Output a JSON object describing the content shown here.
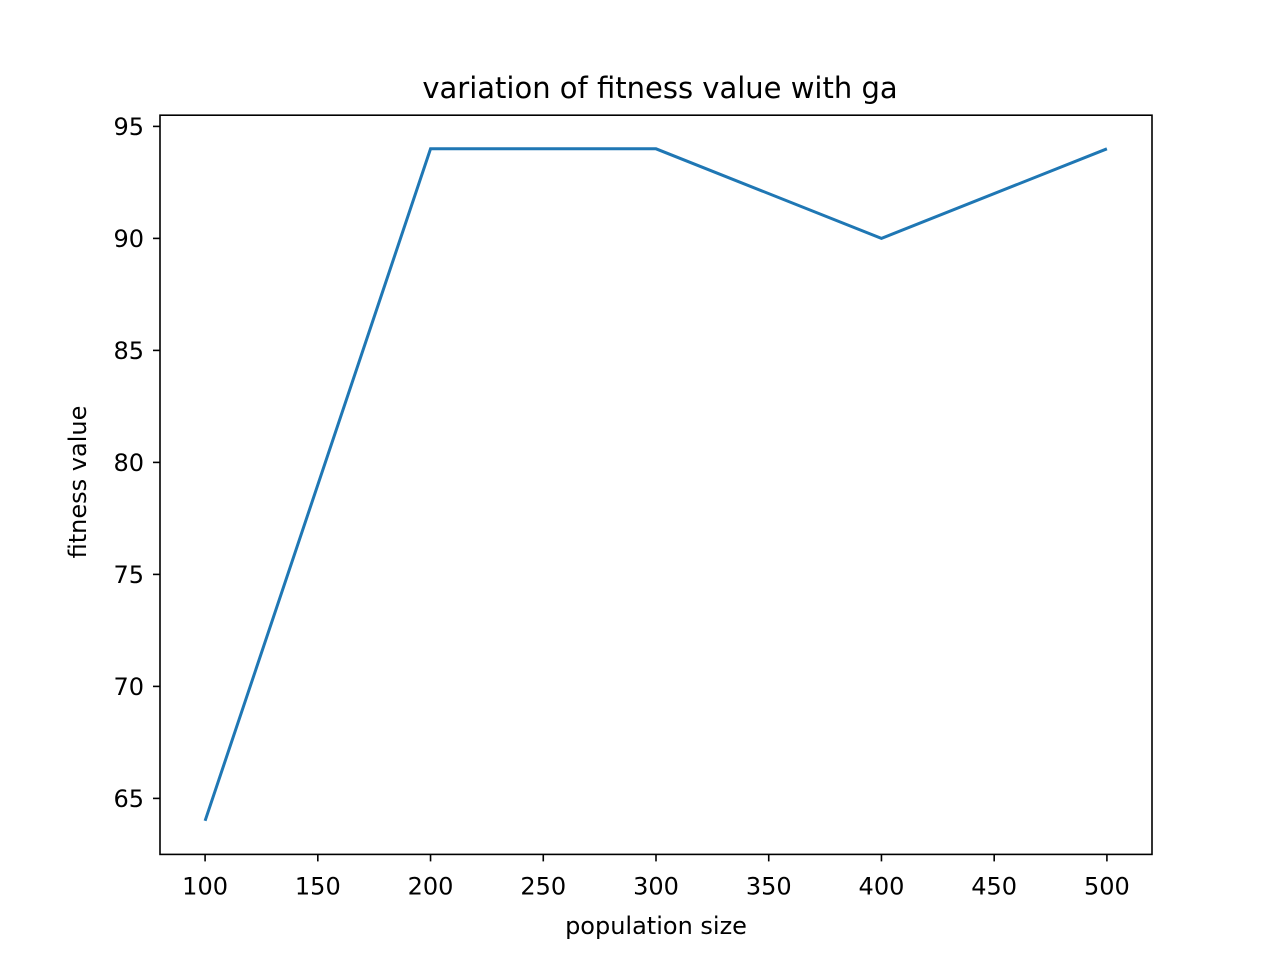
{
  "chart_data": {
    "type": "line",
    "title": "variation of fitness value with ga",
    "xlabel": "population size",
    "ylabel": "fitness value",
    "x": [
      100,
      200,
      300,
      400,
      500
    ],
    "series": [
      {
        "values": [
          64,
          94,
          94,
          90,
          94
        ],
        "color": "#1f77b4"
      }
    ],
    "xlim": [
      80,
      520
    ],
    "ylim": [
      62.5,
      95.5
    ],
    "xticks": [
      100,
      150,
      200,
      250,
      300,
      350,
      400,
      450,
      500
    ],
    "yticks": [
      65,
      70,
      75,
      80,
      85,
      90,
      95
    ],
    "grid": false,
    "legend": "none"
  }
}
